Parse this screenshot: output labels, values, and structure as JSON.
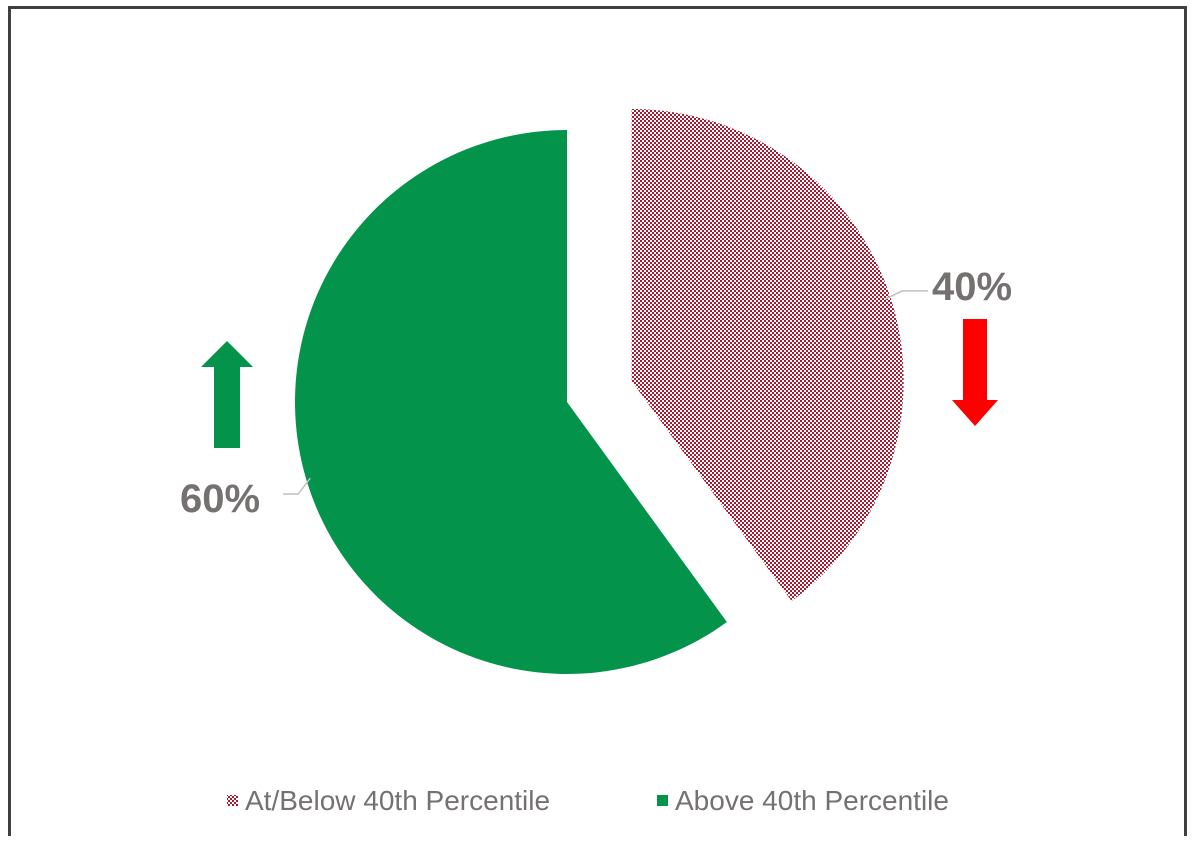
{
  "chart_data": {
    "type": "pie",
    "title": "",
    "slices": [
      {
        "label": "At/Below 40th Percentile",
        "value": 40,
        "display": "40%",
        "color": "#A6192E",
        "pattern": "dotted"
      },
      {
        "label": "Above 40th Percentile",
        "value": 60,
        "display": "60%",
        "color": "#04934A",
        "pattern": "solid"
      }
    ],
    "exploded": "At/Below 40th Percentile",
    "legend_position": "bottom",
    "indicators": [
      {
        "slice": "At/Below 40th Percentile",
        "direction": "down",
        "color": "#FF0000"
      },
      {
        "slice": "Above 40th Percentile",
        "direction": "up",
        "color": "#04934A"
      }
    ]
  }
}
